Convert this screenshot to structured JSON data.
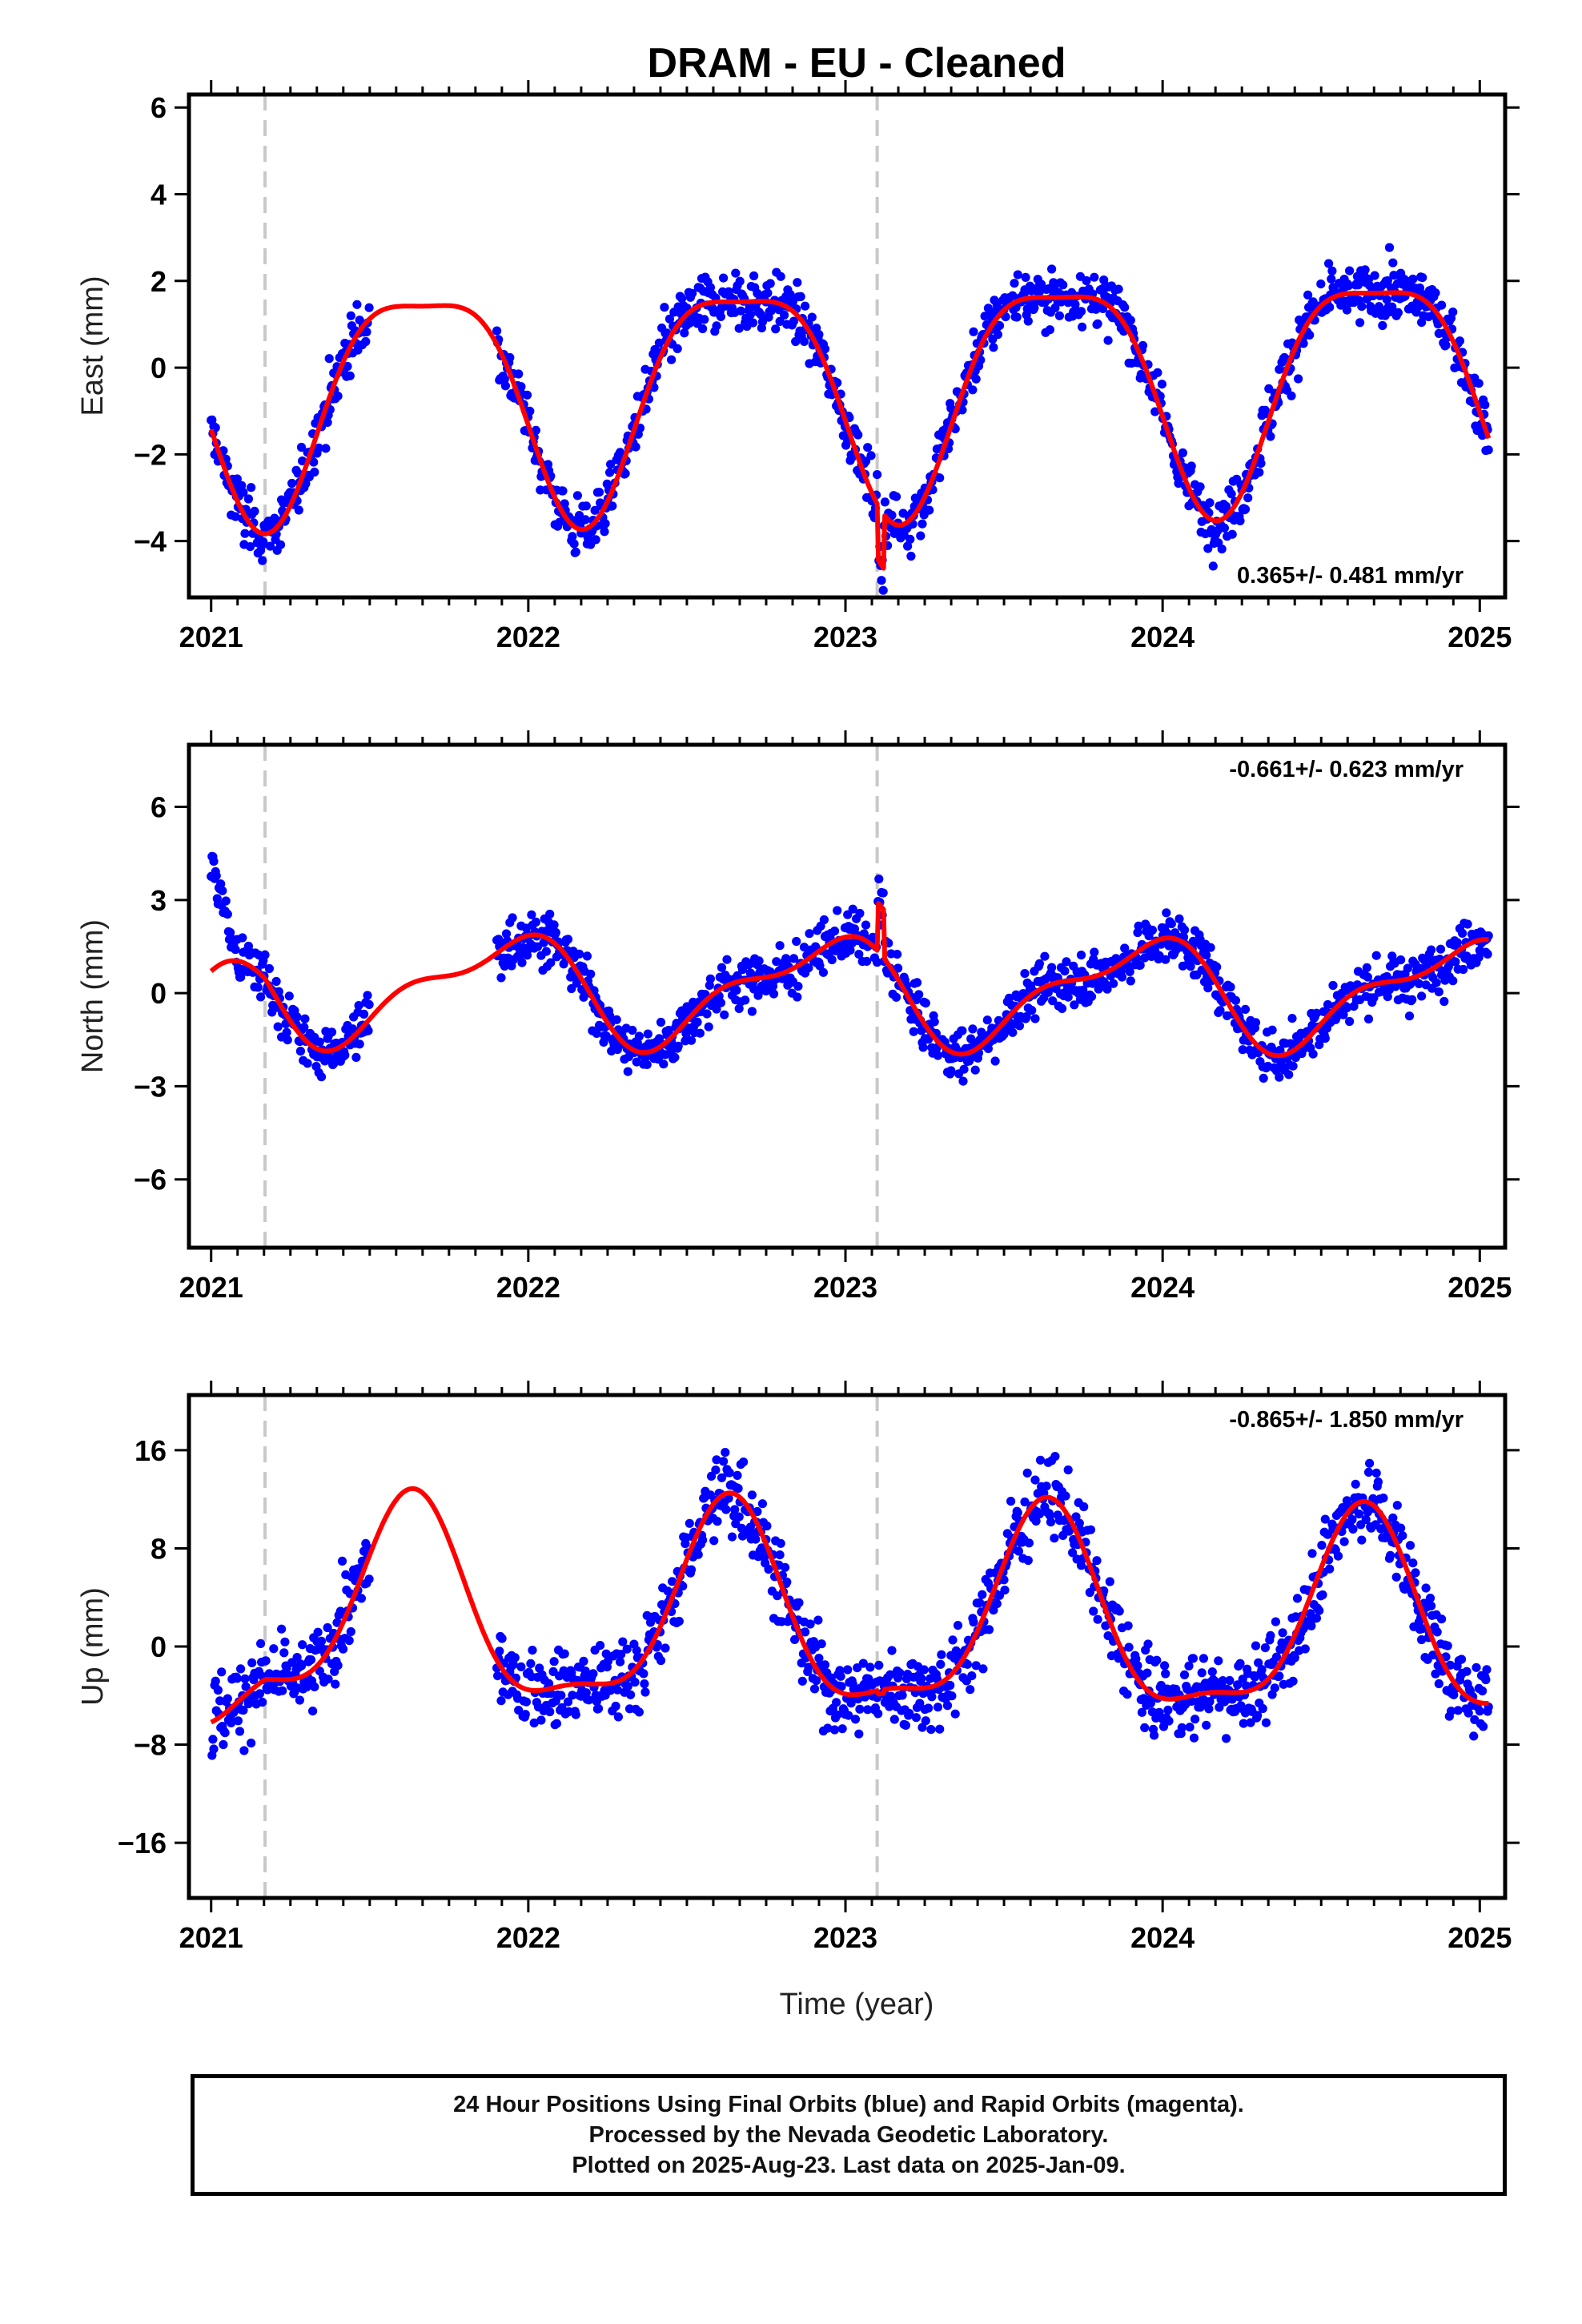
{
  "chart_data": {
    "type": "scatter",
    "title": "DRAM  - EU - Cleaned",
    "xlabel": "Time (year)",
    "xlim": [
      2020.93,
      2025.08
    ],
    "x_ticks": [
      "2021",
      "2022",
      "2023",
      "2024",
      "2025"
    ],
    "x_tick_values": [
      2021,
      2022,
      2023,
      2024,
      2025
    ],
    "point_color": "#0000ff",
    "fit_color": "#ff0000",
    "offset_line_color": "#c8c8c8",
    "offset_epochs": [
      2021.17,
      2023.1
    ],
    "data_span": [
      2021.0,
      2025.03
    ],
    "panels": [
      {
        "name": "east",
        "ylabel": "East (mm)",
        "ylim": [
          -5.3,
          6.3
        ],
        "y_ticks": [
          "−4",
          "−2",
          "0",
          "2",
          "4",
          "6"
        ],
        "y_tick_values": [
          -4,
          -2,
          0,
          2,
          4,
          6
        ],
        "rate": "0.365+/- 0.481 mm/yr",
        "rate_position": "bottom-right",
        "fit": {
          "base": -0.35,
          "a1": -2.6,
          "ph1": 0.17,
          "a2": 0.7,
          "ph2": 0.42,
          "trend": 0.1,
          "jump": 0.0,
          "spike": -1.25,
          "noise": 0.85
        }
      },
      {
        "name": "north",
        "ylabel": "North (mm)",
        "ylim": [
          -8.2,
          8.0
        ],
        "y_ticks": [
          "−6",
          "−3",
          "0",
          "3",
          "6"
        ],
        "y_tick_values": [
          -6,
          -3,
          0,
          3,
          6
        ],
        "rate": "-0.661+/- 0.623 mm/yr",
        "rate_position": "top-right",
        "fit": {
          "base": 0.1,
          "a1": 1.55,
          "ph1": 0.92,
          "a2": 0.65,
          "ph2": 0.08,
          "trend": -0.05,
          "jump": -1.2,
          "spike": 1.55,
          "noise": 1.05
        }
      },
      {
        "name": "up",
        "ylabel": "Up (mm)",
        "ylim": [
          -20.5,
          20.5
        ],
        "y_ticks": [
          "−16",
          "−8",
          "0",
          "8",
          "16"
        ],
        "y_tick_values": [
          -16,
          -8,
          0,
          8,
          16
        ],
        "rate": "-0.865+/- 1.850 mm/yr",
        "rate_position": "top-right",
        "fit": {
          "base": 2.0,
          "a1": 7.9,
          "ph1": 0.63,
          "a2": 2.5,
          "ph2": 0.14,
          "trend": -0.35,
          "jump": -3.0,
          "spike": -0.3,
          "noise": 4.2
        }
      }
    ]
  },
  "caption": {
    "line1": "24 Hour Positions Using Final Orbits (blue) and Rapid Orbits (magenta).",
    "line2": "Processed by the Nevada Geodetic Laboratory.",
    "line3": "Plotted on 2025-Aug-23. Last data on 2025-Jan-09."
  }
}
